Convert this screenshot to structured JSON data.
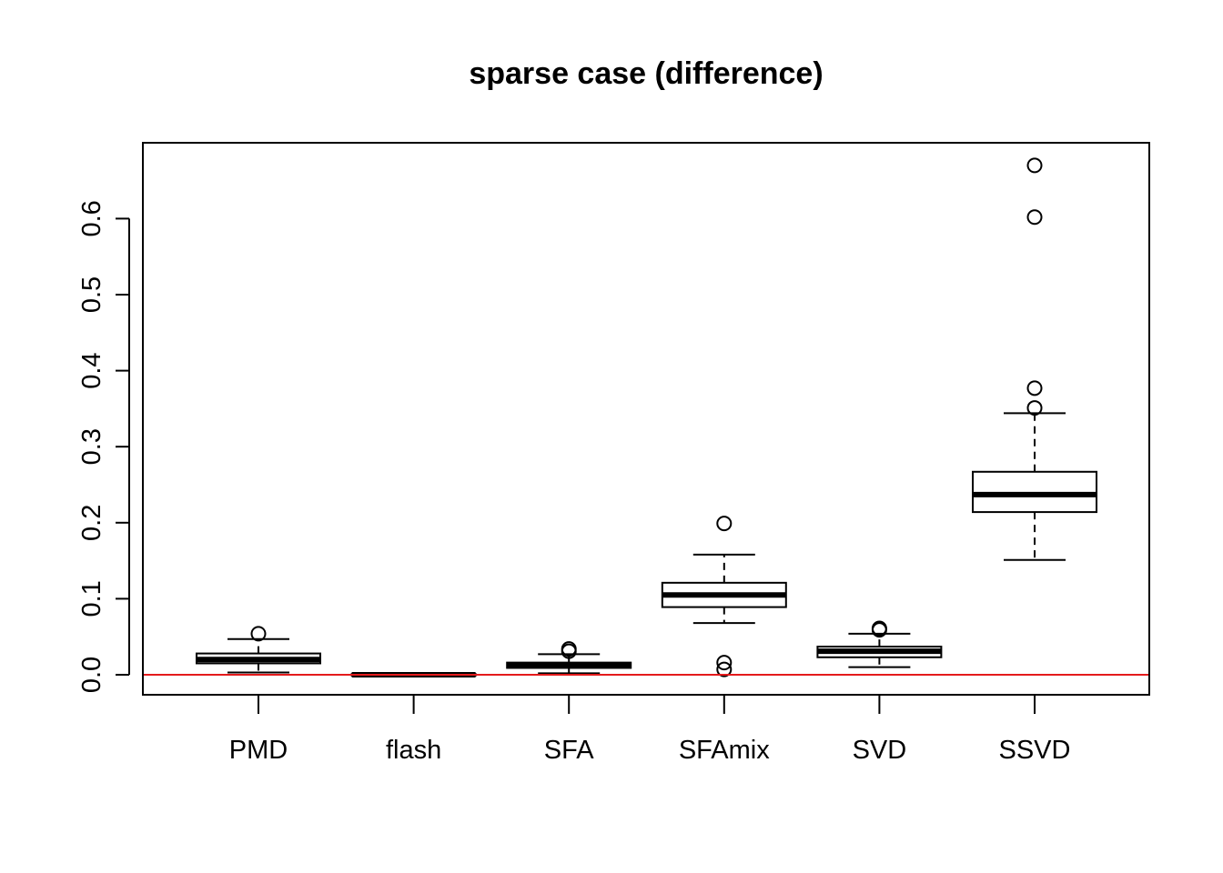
{
  "chart_data": {
    "type": "boxplot",
    "title": "sparse case (difference)",
    "xlabel": "",
    "ylabel": "",
    "ylim": [
      -0.027,
      0.7
    ],
    "yticks": [
      0.0,
      0.1,
      0.2,
      0.3,
      0.4,
      0.5,
      0.6
    ],
    "ytick_labels": [
      "0.0",
      "0.1",
      "0.2",
      "0.3",
      "0.4",
      "0.5",
      "0.6"
    ],
    "categories": [
      "PMD",
      "flash",
      "SFA",
      "SFAmix",
      "SVD",
      "SSVD"
    ],
    "boxes": [
      {
        "name": "PMD",
        "whisker_low": 0.003,
        "q1": 0.015,
        "median": 0.02,
        "q3": 0.028,
        "whisker_high": 0.047,
        "outliers": [
          0.054
        ]
      },
      {
        "name": "flash",
        "whisker_low": -0.001,
        "q1": -0.001,
        "median": 0.0,
        "q3": 0.001,
        "whisker_high": 0.001,
        "outliers": []
      },
      {
        "name": "SFA",
        "whisker_low": 0.002,
        "q1": 0.009,
        "median": 0.012,
        "q3": 0.016,
        "whisker_high": 0.027,
        "outliers": [
          0.031,
          0.034
        ]
      },
      {
        "name": "SFAmix",
        "whisker_low": 0.068,
        "q1": 0.089,
        "median": 0.105,
        "q3": 0.121,
        "whisker_high": 0.158,
        "outliers": [
          0.199,
          0.016,
          0.007
        ]
      },
      {
        "name": "SVD",
        "whisker_low": 0.01,
        "q1": 0.023,
        "median": 0.031,
        "q3": 0.037,
        "whisker_high": 0.054,
        "outliers": [
          0.059,
          0.061
        ]
      },
      {
        "name": "SSVD",
        "whisker_low": 0.151,
        "q1": 0.214,
        "median": 0.237,
        "q3": 0.267,
        "whisker_high": 0.344,
        "outliers": [
          0.351,
          0.377,
          0.602,
          0.67
        ]
      }
    ],
    "reference_line": {
      "y": 0.0,
      "color": "#e41a1c"
    },
    "grid": false,
    "legend": "none"
  }
}
